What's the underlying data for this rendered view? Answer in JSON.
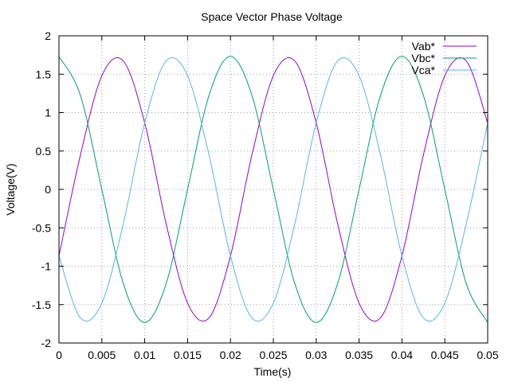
{
  "chart_data": {
    "type": "line",
    "title": "Space Vector Phase Voltage",
    "xlabel": "Time(s)",
    "ylabel": "Voltage(V)",
    "xlim": [
      0,
      0.05
    ],
    "ylim": [
      -2,
      2
    ],
    "grid": true,
    "legend_position": "top-right",
    "x_ticks": [
      "0",
      "0.005",
      "0.01",
      "0.015",
      "0.02",
      "0.025",
      "0.03",
      "0.035",
      "0.04",
      "0.045",
      "0.05"
    ],
    "y_ticks": [
      "2",
      "1.5",
      "1",
      "0.5",
      "0",
      "-0.5",
      "-1",
      "-1.5",
      "-2"
    ],
    "x": [
      0,
      0.0025,
      0.005,
      0.0075,
      0.01,
      0.0125,
      0.015,
      0.0175,
      0.02,
      0.0225,
      0.025,
      0.0275,
      0.03,
      0.0325,
      0.035,
      0.0375,
      0.04,
      0.0425,
      0.045,
      0.0475,
      0.05
    ],
    "series": [
      {
        "name": "Vab*",
        "color": "#9400d3",
        "values": [
          -0.866,
          0.448,
          1.48,
          1.673,
          0.866,
          -0.448,
          -1.48,
          -1.673,
          -0.866,
          0.448,
          1.48,
          1.673,
          0.866,
          -0.448,
          -1.48,
          -1.673,
          -0.866,
          0.448,
          1.48,
          1.673,
          0.866
        ]
      },
      {
        "name": "Vbc*",
        "color": "#009e73",
        "values": [
          1.732,
          1.225,
          0,
          -1.225,
          -1.732,
          -1.225,
          0,
          1.225,
          1.732,
          1.225,
          0,
          -1.225,
          -1.732,
          -1.225,
          0,
          1.225,
          1.732,
          1.225,
          0,
          -1.225,
          -1.732
        ]
      },
      {
        "name": "Vca*",
        "color": "#56b4e9",
        "values": [
          -0.866,
          -1.673,
          -1.48,
          -0.448,
          0.866,
          1.673,
          1.48,
          0.448,
          -0.866,
          -1.673,
          -1.48,
          -0.448,
          0.866,
          1.673,
          1.48,
          0.448,
          -0.866,
          -1.673,
          -1.48,
          -0.448,
          0.866
        ]
      }
    ]
  }
}
